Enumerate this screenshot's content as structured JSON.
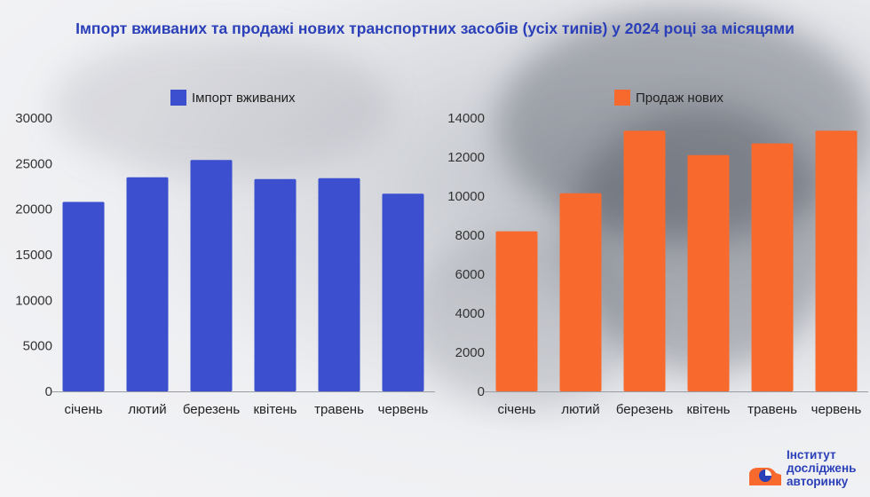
{
  "title": "Імпорт вживаних та продажі нових транспортних засобів (усіх типів) у 2024 році за місяцями",
  "logo": {
    "line1": "Інститут",
    "line2": "досліджень",
    "line3": "авторинку"
  },
  "colors": {
    "left_series": "#3b4fcf",
    "right_series": "#f8692d",
    "title": "#2a3fb8"
  },
  "chart_data": [
    {
      "type": "bar",
      "categories": [
        "січень",
        "лютий",
        "березень",
        "квітень",
        "травень",
        "червень"
      ],
      "series": [
        {
          "name": "Імпорт вживаних",
          "values": [
            20800,
            23500,
            25400,
            23300,
            23400,
            21700
          ]
        }
      ],
      "ylim": [
        0,
        30000
      ],
      "yticks": [
        "0",
        "5000",
        "10000",
        "15000",
        "20000",
        "25000",
        "30000"
      ],
      "legend": "top-center",
      "grid": false
    },
    {
      "type": "bar",
      "categories": [
        "січень",
        "лютий",
        "березень",
        "квітень",
        "травень",
        "червень"
      ],
      "series": [
        {
          "name": "Продаж нових",
          "values": [
            8200,
            10150,
            13350,
            12100,
            12700,
            13350
          ]
        }
      ],
      "ylim": [
        0,
        14000
      ],
      "yticks": [
        "0",
        "2000",
        "4000",
        "6000",
        "8000",
        "10000",
        "12000",
        "14000"
      ],
      "legend": "top-center",
      "grid": false
    }
  ]
}
